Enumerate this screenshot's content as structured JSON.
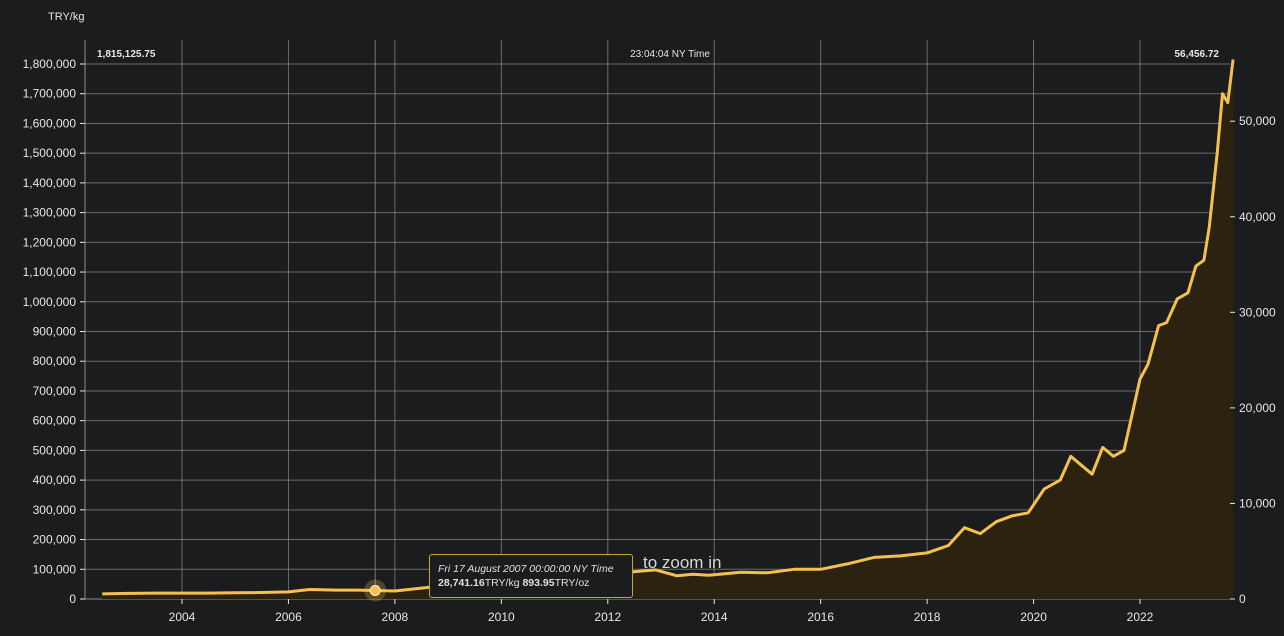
{
  "header": {
    "unit_label": "TRY/kg"
  },
  "top_labels": {
    "left_value": "1,815,125.75",
    "center_time": "23:04:04 NY Time",
    "right_value": "56,456.72"
  },
  "tooltip": {
    "date": "Fri 17 August 2007 00:00:00 NY Time",
    "kg_value": "28,741.16",
    "kg_unit": "TRY/kg",
    "oz_value": "893.95",
    "oz_unit": "TRY/oz"
  },
  "zoom_hint": "to zoom in",
  "colors": {
    "line": "#f6c04f",
    "fill": "#2b220f",
    "grid": "#8c8c8c",
    "background": "#1b1c1e",
    "text": "#e6e6e6",
    "tooltip_border": "#c9a43c"
  },
  "chart_data": {
    "type": "area",
    "title": "",
    "xlabel": "",
    "ylabel": "TRY/kg",
    "y2label": "",
    "xlim": [
      2002.5,
      2023.8
    ],
    "ylim": [
      0,
      1800000
    ],
    "y2lim": [
      0,
      55986
    ],
    "x_ticks": [
      "2004",
      "2006",
      "2008",
      "2010",
      "2012",
      "2014",
      "2016",
      "2018",
      "2020",
      "2022"
    ],
    "y_ticks": [
      "0",
      "100,000",
      "200,000",
      "300,000",
      "400,000",
      "500,000",
      "600,000",
      "700,000",
      "800,000",
      "900,000",
      "1,000,000",
      "1,100,000",
      "1,200,000",
      "1,300,000",
      "1,400,000",
      "1,500,000",
      "1,600,000",
      "1,700,000",
      "1,800,000"
    ],
    "y2_ticks": [
      "0",
      "10,000",
      "20,000",
      "30,000",
      "40,000",
      "50,000"
    ],
    "grid": true,
    "highlight": {
      "x": 2007.63,
      "y": 28741
    },
    "series": [
      {
        "x": [
          2002.5,
          2003.0,
          2003.5,
          2004.0,
          2004.5,
          2005.0,
          2005.5,
          2006.0,
          2006.4,
          2006.9,
          2007.3,
          2007.63,
          2008.0,
          2011.5,
          2012.5,
          2012.9,
          2013.3,
          2013.6,
          2013.9,
          2014.5,
          2015.0,
          2015.5,
          2016.0,
          2016.5,
          2017.0,
          2017.5,
          2018.0,
          2018.4,
          2018.7,
          2019.0,
          2019.3,
          2019.6,
          2019.9,
          2020.2,
          2020.5,
          2020.7,
          2020.9,
          2021.1,
          2021.3,
          2021.5,
          2021.7,
          2021.9,
          2022.0,
          2022.15,
          2022.35,
          2022.5,
          2022.7,
          2022.9,
          2023.05,
          2023.2,
          2023.3,
          2023.45,
          2023.55,
          2023.65,
          2023.75
        ],
        "values": [
          17000,
          19000,
          20000,
          20000,
          20000,
          21000,
          22000,
          24000,
          32000,
          30000,
          30000,
          28741,
          27000,
          95000,
          92000,
          98000,
          78000,
          83000,
          80000,
          90000,
          88000,
          100000,
          100000,
          118000,
          140000,
          145000,
          155000,
          180000,
          240000,
          220000,
          260000,
          280000,
          290000,
          370000,
          400000,
          480000,
          450000,
          420000,
          510000,
          480000,
          500000,
          660000,
          740000,
          790000,
          920000,
          930000,
          1010000,
          1030000,
          1120000,
          1140000,
          1250000,
          1500000,
          1700000,
          1670000,
          1815000
        ]
      }
    ]
  }
}
